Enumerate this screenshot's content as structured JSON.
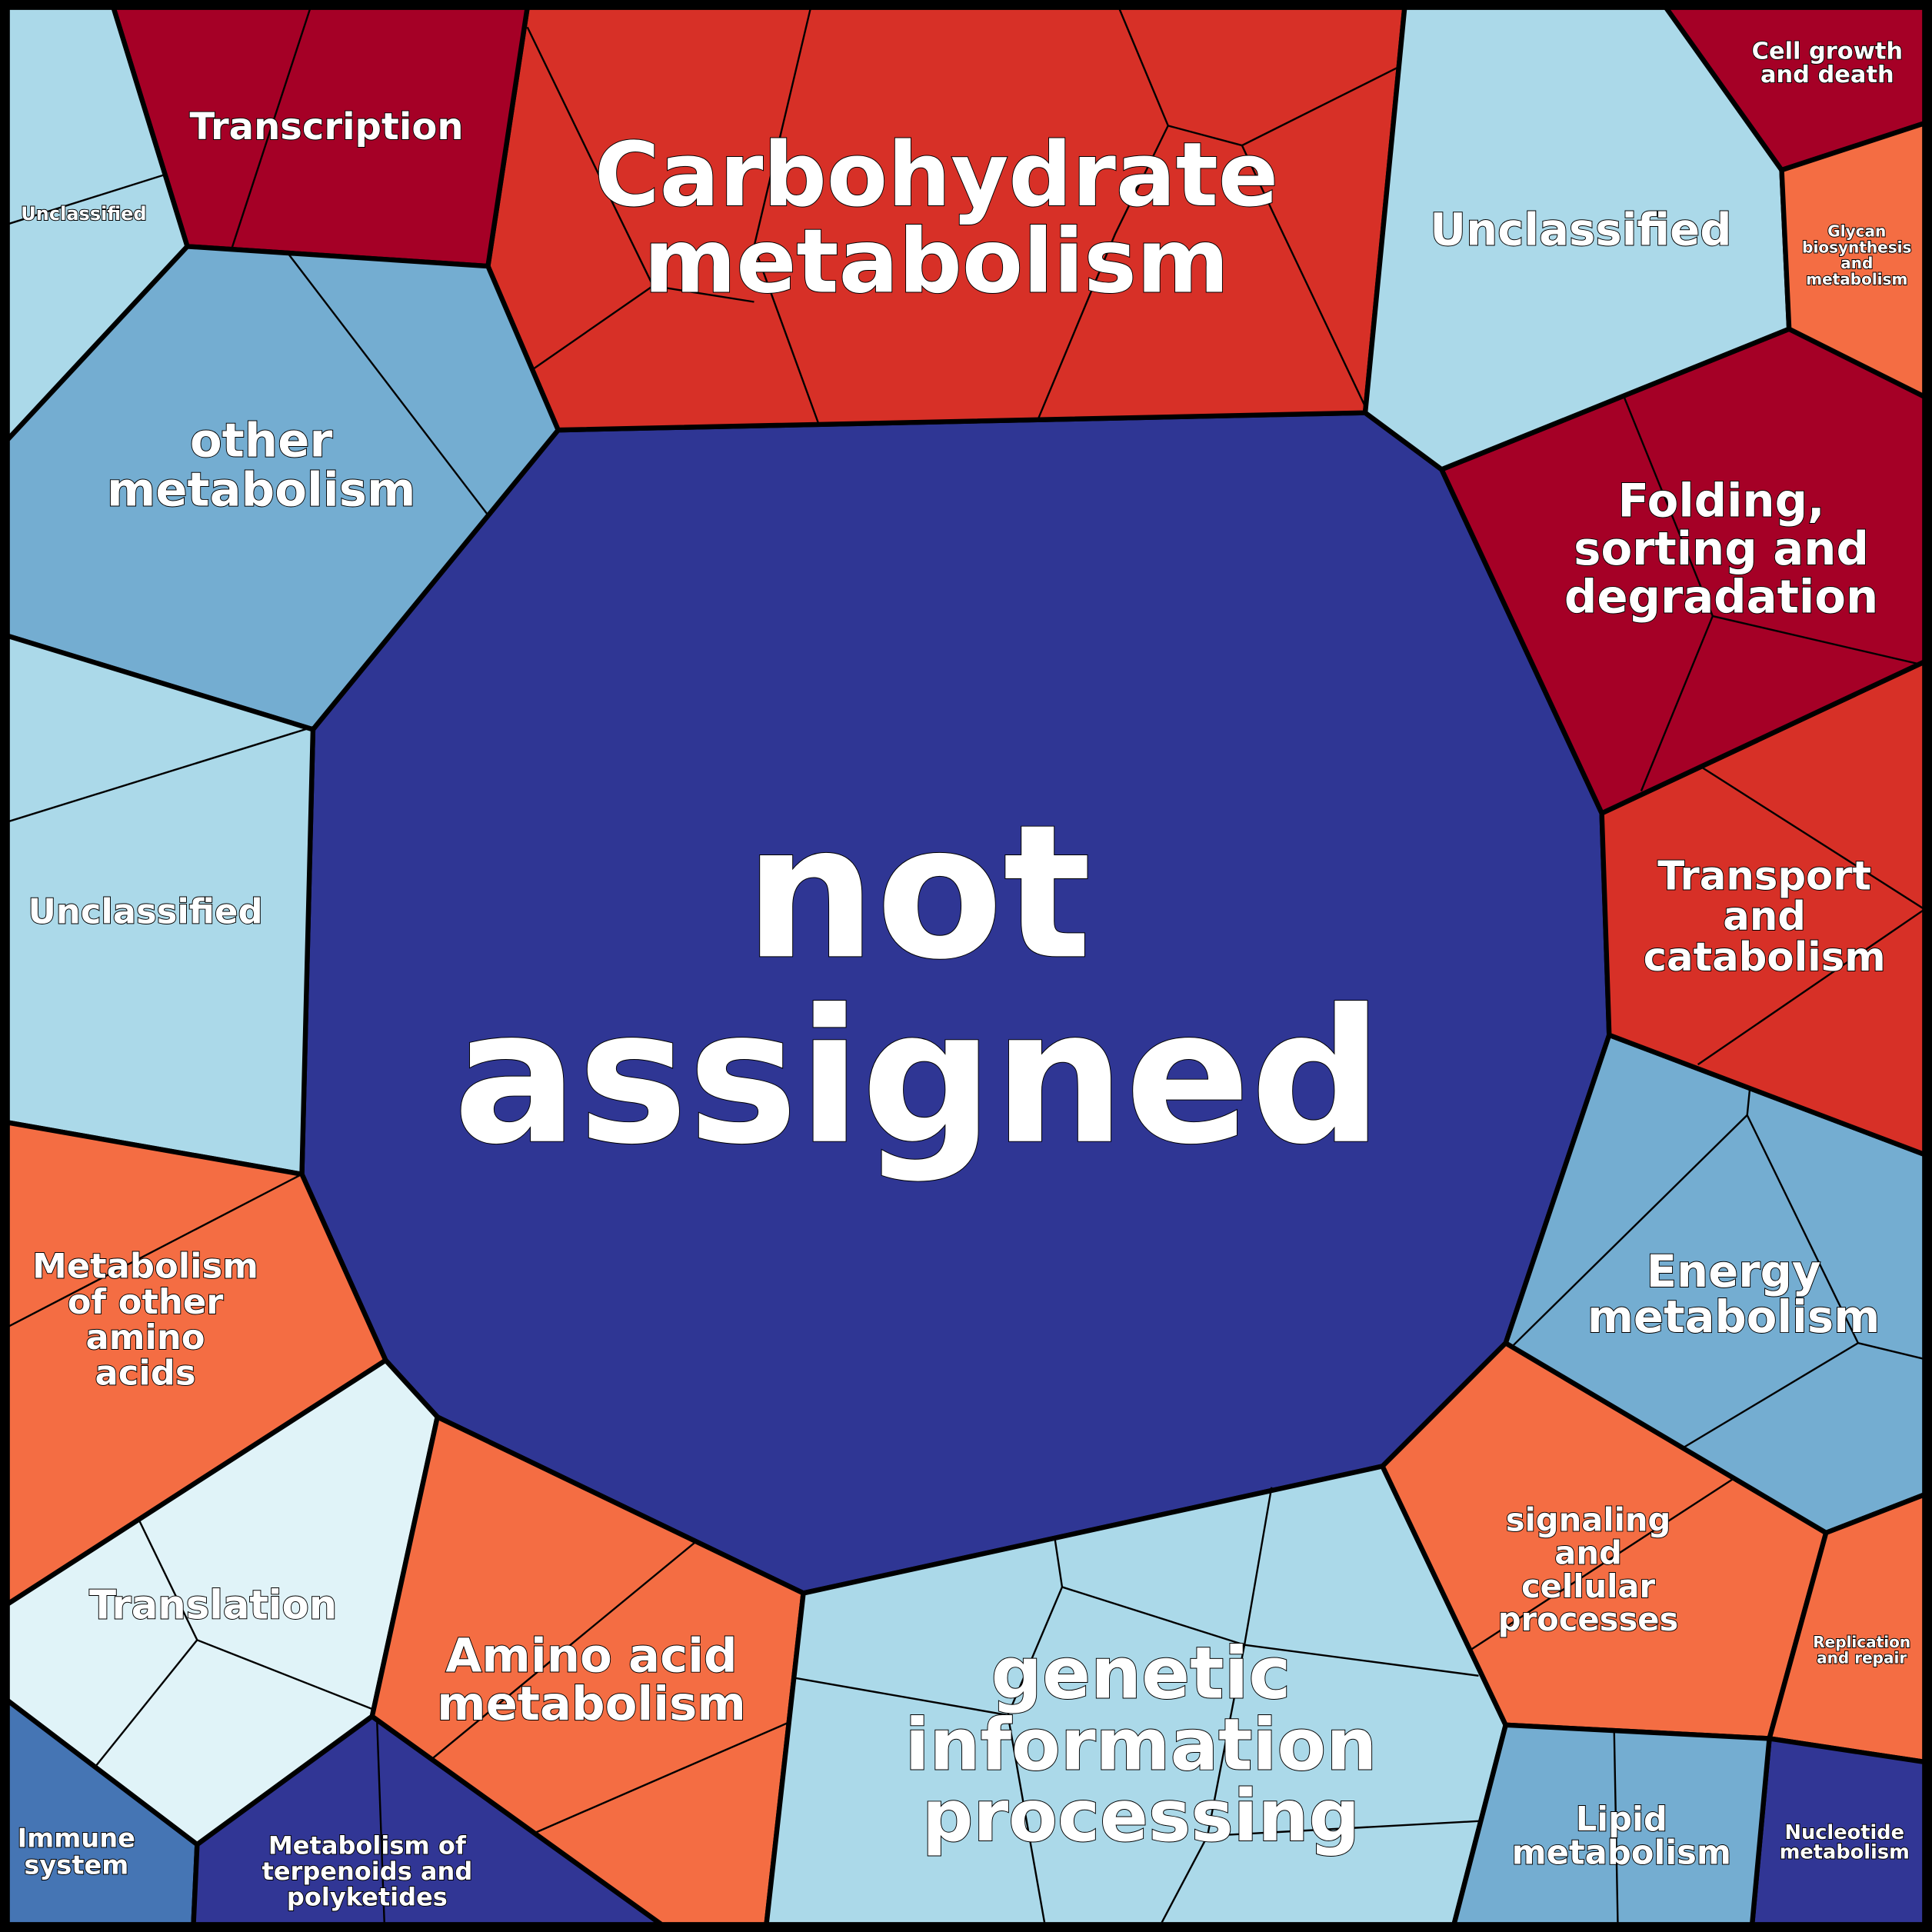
{
  "cells": [
    {
      "label": [
        "not",
        "assigned"
      ]
    },
    {
      "label": [
        "Carbohydrate",
        "metabolism"
      ]
    },
    {
      "label": [
        "Transcription"
      ]
    },
    {
      "label": [
        "Unclassified"
      ]
    },
    {
      "label": [
        "other",
        "metabolism"
      ]
    },
    {
      "label": [
        "Unclassified"
      ]
    },
    {
      "label": [
        "Metabolism",
        "of other",
        "amino",
        "acids"
      ]
    },
    {
      "label": [
        "Translation"
      ]
    },
    {
      "label": [
        "Immune",
        "system"
      ]
    },
    {
      "label": [
        "Metabolism of",
        "terpenoids and",
        "polyketides"
      ]
    },
    {
      "label": [
        "Amino acid",
        "metabolism"
      ]
    },
    {
      "label": [
        "genetic",
        "information",
        "processing"
      ]
    },
    {
      "label": [
        "signaling",
        "and",
        "cellular",
        "processes"
      ]
    },
    {
      "label": [
        "Energy",
        "metabolism"
      ]
    },
    {
      "label": [
        "Transport",
        "and",
        "catabolism"
      ]
    },
    {
      "label": [
        "Folding,",
        "sorting and",
        "degradation"
      ]
    },
    {
      "label": [
        "Unclassified"
      ]
    },
    {
      "label": [
        "Cell growth",
        "and death"
      ]
    },
    {
      "label": [
        "Glycan",
        "biosynthesis",
        "and",
        "metabolism"
      ]
    },
    {
      "label": [
        "Replication",
        "and repair"
      ]
    },
    {
      "label": [
        "Nucleotide",
        "metabolism"
      ]
    },
    {
      "label": [
        "Lipid",
        "metabolism"
      ]
    }
  ]
}
